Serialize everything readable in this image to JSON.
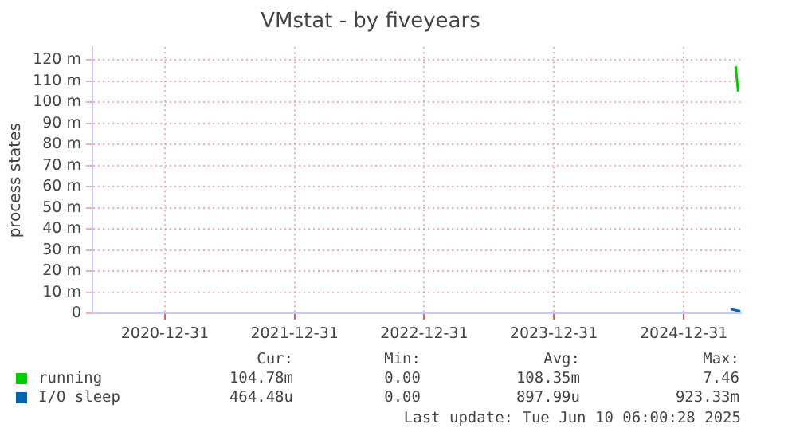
{
  "chart_data": {
    "type": "line",
    "title": "VMstat - by fiveyears",
    "ylabel": "process states",
    "xlim": [
      "2020-06-10",
      "2025-06-10"
    ],
    "xticks": [
      "2020-12-31",
      "2021-12-31",
      "2022-12-31",
      "2023-12-31",
      "2024-12-31"
    ],
    "ylim": [
      0,
      126
    ],
    "yticks": [
      0,
      {
        "value": 10,
        "label": "10 m"
      },
      {
        "value": 20,
        "label": "20 m"
      },
      {
        "value": 30,
        "label": "30 m"
      },
      {
        "value": 40,
        "label": "40 m"
      },
      {
        "value": 50,
        "label": "50 m"
      },
      {
        "value": 60,
        "label": "60 m"
      },
      {
        "value": 70,
        "label": "70 m"
      },
      {
        "value": 80,
        "label": "80 m"
      },
      {
        "value": 90,
        "label": "90 m"
      },
      {
        "value": 100,
        "label": "100 m"
      },
      {
        "value": 110,
        "label": "110 m"
      },
      {
        "value": 120,
        "label": "120 m"
      }
    ],
    "series": [
      {
        "name": "running",
        "color": "#00cc00",
        "x": [
          "2025-05-26",
          "2025-06-02"
        ],
        "values": [
          117,
          105
        ]
      },
      {
        "name": "I/O sleep",
        "color": "#0066b3",
        "x": [
          "2025-05-12",
          "2025-06-08"
        ],
        "values": [
          2,
          1
        ]
      }
    ],
    "grid": true,
    "legend": "bottom",
    "marker": "none",
    "line_style": "solid",
    "annotations": [
      "Cur:",
      "Min:",
      "Avg:",
      "Max:",
      "104.78m",
      "0.00",
      "108.35m",
      "7.46",
      "464.48u",
      "0.00",
      "897.99u",
      "923.33m",
      "Last update: Tue Jun 10 06:00:28 2025"
    ]
  }
}
